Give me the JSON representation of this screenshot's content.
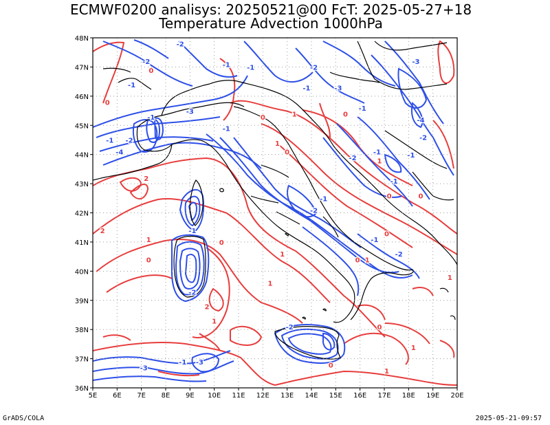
{
  "title": {
    "line1": "ECMWF0200 analisys: 20250521@00 FcT: 2025-05-27+18",
    "line2": "Temperature Advection 1000hPa"
  },
  "map": {
    "lon_range": [
      5,
      20
    ],
    "lat_range": [
      36,
      48
    ],
    "lon_ticks": [
      "5E",
      "6E",
      "7E",
      "8E",
      "9E",
      "10E",
      "11E",
      "12E",
      "13E",
      "14E",
      "15E",
      "16E",
      "17E",
      "18E",
      "19E",
      "20E"
    ],
    "lat_ticks": [
      "36N",
      "37N",
      "38N",
      "39N",
      "40N",
      "41N",
      "42N",
      "43N",
      "44N",
      "45N",
      "46N",
      "47N",
      "48N"
    ],
    "grid": true,
    "colors": {
      "warm": "#e83c3c",
      "cold": "#2d4fe8",
      "coast": "#000000",
      "grid": "#9a9a9a"
    },
    "warm_labels": [
      {
        "text": "0",
        "lon": 7.4,
        "lat": 46.8
      },
      {
        "text": "0",
        "lon": 5.6,
        "lat": 45.7
      },
      {
        "text": "2",
        "lon": 7.2,
        "lat": 43.1
      },
      {
        "text": "2",
        "lon": 5.4,
        "lat": 41.3
      },
      {
        "text": "1",
        "lon": 7.3,
        "lat": 41.0
      },
      {
        "text": "0",
        "lon": 7.3,
        "lat": 40.3
      },
      {
        "text": "0",
        "lon": 10.3,
        "lat": 40.9
      },
      {
        "text": "1",
        "lon": 10.0,
        "lat": 38.2
      },
      {
        "text": "2",
        "lon": 9.7,
        "lat": 38.7
      },
      {
        "text": "1",
        "lon": 12.3,
        "lat": 39.5
      },
      {
        "text": "0",
        "lon": 14.8,
        "lat": 36.7
      },
      {
        "text": "1",
        "lon": 17.1,
        "lat": 36.5
      },
      {
        "text": "1",
        "lon": 18.2,
        "lat": 37.3
      },
      {
        "text": "0",
        "lon": 16.8,
        "lat": 38.0
      },
      {
        "text": "1",
        "lon": 16.3,
        "lat": 40.3
      },
      {
        "text": "0",
        "lon": 15.9,
        "lat": 40.3
      },
      {
        "text": "0",
        "lon": 17.2,
        "lat": 42.5
      },
      {
        "text": "1",
        "lon": 16.8,
        "lat": 43.7
      },
      {
        "text": "0",
        "lon": 13.0,
        "lat": 44.0
      },
      {
        "text": "1",
        "lon": 12.6,
        "lat": 44.3
      },
      {
        "text": "0",
        "lon": 12.0,
        "lat": 45.2
      },
      {
        "text": "1",
        "lon": 13.3,
        "lat": 45.3
      },
      {
        "text": "0",
        "lon": 15.4,
        "lat": 45.3
      },
      {
        "text": "0",
        "lon": 18.5,
        "lat": 42.5
      },
      {
        "text": "0",
        "lon": 17.1,
        "lat": 41.2
      },
      {
        "text": "1",
        "lon": 19.7,
        "lat": 39.7
      },
      {
        "text": "1",
        "lon": 12.8,
        "lat": 40.5
      }
    ],
    "cold_labels": [
      {
        "text": "-2",
        "lon": 8.6,
        "lat": 47.7
      },
      {
        "text": "-2",
        "lon": 7.2,
        "lat": 47.1
      },
      {
        "text": "-1",
        "lon": 6.6,
        "lat": 46.3
      },
      {
        "text": "-1",
        "lon": 10.5,
        "lat": 47.0
      },
      {
        "text": "-1",
        "lon": 11.5,
        "lat": 46.9
      },
      {
        "text": "-2",
        "lon": 14.1,
        "lat": 46.9
      },
      {
        "text": "-1",
        "lon": 13.8,
        "lat": 46.2
      },
      {
        "text": "-3",
        "lon": 15.1,
        "lat": 46.2
      },
      {
        "text": "-3",
        "lon": 18.3,
        "lat": 47.1
      },
      {
        "text": "-1",
        "lon": 16.1,
        "lat": 45.5
      },
      {
        "text": "-4",
        "lon": 18.5,
        "lat": 45.1
      },
      {
        "text": "-2",
        "lon": 18.6,
        "lat": 44.5
      },
      {
        "text": "-1",
        "lon": 18.1,
        "lat": 43.9
      },
      {
        "text": "-1",
        "lon": 16.7,
        "lat": 44.0
      },
      {
        "text": "-2",
        "lon": 15.7,
        "lat": 43.8
      },
      {
        "text": "-1",
        "lon": 17.4,
        "lat": 43.0
      },
      {
        "text": "-3",
        "lon": 9.0,
        "lat": 45.4
      },
      {
        "text": "-1",
        "lon": 7.4,
        "lat": 45.2
      },
      {
        "text": "-2",
        "lon": 6.5,
        "lat": 44.4
      },
      {
        "text": "-4",
        "lon": 6.1,
        "lat": 44.0
      },
      {
        "text": "-1",
        "lon": 5.7,
        "lat": 44.4
      },
      {
        "text": "-1",
        "lon": 10.5,
        "lat": 44.8
      },
      {
        "text": "-2",
        "lon": 14.1,
        "lat": 42.0
      },
      {
        "text": "-1",
        "lon": 14.5,
        "lat": 42.4
      },
      {
        "text": "-1",
        "lon": 9.1,
        "lat": 41.3
      },
      {
        "text": "-2",
        "lon": 9.1,
        "lat": 39.2
      },
      {
        "text": "-2",
        "lon": 13.1,
        "lat": 38.0
      },
      {
        "text": "-1",
        "lon": 16.6,
        "lat": 41.0
      },
      {
        "text": "-2",
        "lon": 17.6,
        "lat": 40.5
      },
      {
        "text": "-3",
        "lon": 7.1,
        "lat": 36.6
      },
      {
        "text": "-1",
        "lon": 8.7,
        "lat": 36.8
      },
      {
        "text": "-3",
        "lon": 9.4,
        "lat": 36.8
      }
    ]
  },
  "footer": {
    "left": "GrADS/COLA",
    "right": "2025-05-21-09:57"
  }
}
